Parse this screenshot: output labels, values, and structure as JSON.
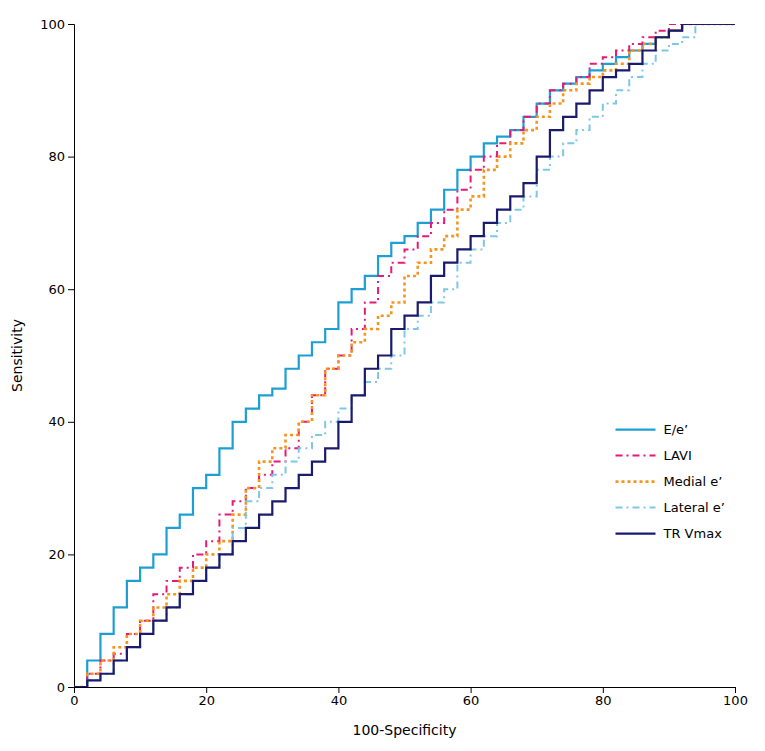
{
  "chart_data": {
    "type": "line",
    "xlabel": "100-Specificity",
    "ylabel": "Sensitivity",
    "xlim": [
      0,
      100
    ],
    "ylim": [
      0,
      100
    ],
    "xticks": [
      0,
      20,
      40,
      60,
      80,
      100
    ],
    "yticks": [
      0,
      20,
      40,
      60,
      80,
      100
    ],
    "legend": "lower right",
    "x": [
      0,
      2,
      2,
      4,
      4,
      6,
      6,
      8,
      8,
      10,
      10,
      12,
      12,
      14,
      14,
      16,
      16,
      18,
      18,
      20,
      20,
      22,
      22,
      24,
      24,
      26,
      26,
      28,
      28,
      30,
      30,
      32,
      32,
      34,
      34,
      36,
      36,
      38,
      38,
      40,
      40,
      42,
      42,
      44,
      44,
      46,
      46,
      48,
      48,
      50,
      50,
      52,
      52,
      54,
      54,
      56,
      56,
      58,
      58,
      60,
      60,
      62,
      62,
      64,
      64,
      66,
      66,
      68,
      68,
      70,
      70,
      72,
      72,
      74,
      74,
      76,
      76,
      78,
      78,
      80,
      80,
      82,
      82,
      84,
      84,
      86,
      86,
      88,
      88,
      90,
      90,
      92,
      92,
      94,
      94,
      96,
      96,
      98,
      98,
      100,
      100
    ],
    "series": [
      {
        "name": "E/e’",
        "color": "#1E9FD4",
        "line_style": "solid",
        "values": [
          0,
          0,
          4,
          4,
          8,
          8,
          12,
          12,
          16,
          16,
          18,
          18,
          20,
          20,
          24,
          24,
          26,
          26,
          30,
          30,
          32,
          32,
          36,
          36,
          40,
          40,
          42,
          42,
          44,
          44,
          45,
          45,
          48,
          48,
          50,
          50,
          52,
          52,
          54,
          54,
          58,
          58,
          60,
          60,
          62,
          62,
          65,
          65,
          67,
          67,
          68,
          68,
          70,
          70,
          72,
          72,
          75,
          75,
          78,
          78,
          80,
          80,
          82,
          82,
          83,
          83,
          84,
          84,
          86,
          86,
          88,
          88,
          90,
          90,
          91,
          91,
          92,
          92,
          93,
          93,
          94,
          94,
          95,
          95,
          96,
          96,
          97,
          97,
          98,
          98,
          99,
          99,
          100,
          100,
          100,
          100,
          100,
          100,
          100,
          100,
          100
        ]
      },
      {
        "name": "LAVI",
        "color": "#E6197A",
        "line_style": "dashdot",
        "values": [
          0,
          0,
          2,
          2,
          4,
          4,
          5,
          5,
          8,
          8,
          10,
          10,
          14,
          14,
          16,
          16,
          18,
          18,
          20,
          20,
          22,
          22,
          26,
          26,
          28,
          28,
          30,
          30,
          32,
          32,
          34,
          34,
          36,
          36,
          40,
          40,
          44,
          44,
          48,
          48,
          50,
          50,
          54,
          54,
          58,
          58,
          62,
          62,
          64,
          64,
          66,
          66,
          68,
          68,
          70,
          70,
          72,
          72,
          75,
          75,
          78,
          78,
          80,
          80,
          82,
          82,
          84,
          84,
          86,
          86,
          88,
          88,
          90,
          90,
          91,
          91,
          92,
          92,
          94,
          94,
          95,
          95,
          96,
          96,
          97,
          97,
          98,
          98,
          99,
          99,
          100,
          100,
          100,
          100,
          100,
          100,
          100,
          100,
          100,
          100,
          100
        ]
      },
      {
        "name": "Medial e’",
        "color": "#F7941D",
        "line_style": "dotted",
        "values": [
          0,
          0,
          2,
          2,
          4,
          4,
          6,
          6,
          8,
          8,
          10,
          10,
          12,
          12,
          14,
          14,
          16,
          16,
          18,
          18,
          20,
          20,
          22,
          22,
          26,
          26,
          30,
          30,
          34,
          34,
          36,
          36,
          38,
          38,
          40,
          40,
          44,
          44,
          48,
          48,
          50,
          50,
          52,
          52,
          54,
          54,
          56,
          56,
          58,
          58,
          62,
          62,
          64,
          64,
          66,
          66,
          68,
          68,
          72,
          72,
          74,
          74,
          78,
          78,
          80,
          80,
          82,
          82,
          84,
          84,
          86,
          86,
          88,
          88,
          90,
          90,
          91,
          91,
          92,
          92,
          93,
          93,
          94,
          94,
          96,
          96,
          97,
          97,
          98,
          98,
          99,
          99,
          100,
          100,
          100,
          100,
          100,
          100,
          100,
          100,
          100
        ]
      },
      {
        "name": "Lateral e’",
        "color": "#7EC8E3",
        "line_style": "dashdot",
        "values": [
          0,
          0,
          1,
          1,
          2,
          2,
          4,
          4,
          6,
          6,
          8,
          8,
          10,
          10,
          12,
          12,
          14,
          14,
          16,
          16,
          18,
          18,
          20,
          20,
          24,
          24,
          28,
          28,
          30,
          30,
          32,
          32,
          34,
          34,
          36,
          36,
          38,
          38,
          40,
          40,
          42,
          42,
          44,
          44,
          46,
          46,
          48,
          48,
          50,
          50,
          54,
          54,
          56,
          56,
          58,
          58,
          60,
          60,
          64,
          64,
          66,
          66,
          68,
          68,
          70,
          70,
          72,
          72,
          74,
          74,
          78,
          78,
          80,
          80,
          82,
          82,
          84,
          84,
          86,
          86,
          88,
          88,
          90,
          90,
          92,
          92,
          94,
          94,
          96,
          96,
          97,
          97,
          98,
          98,
          100,
          100,
          100,
          100,
          100,
          100,
          100
        ]
      },
      {
        "name": "TR Vmax",
        "color": "#1A1A6E",
        "line_style": "solid",
        "values": [
          0,
          0,
          1,
          1,
          2,
          2,
          4,
          4,
          6,
          6,
          8,
          8,
          10,
          10,
          12,
          12,
          14,
          14,
          16,
          16,
          18,
          18,
          20,
          20,
          22,
          22,
          24,
          24,
          26,
          26,
          28,
          28,
          30,
          30,
          32,
          32,
          34,
          34,
          36,
          36,
          40,
          40,
          44,
          44,
          48,
          48,
          50,
          50,
          54,
          54,
          56,
          56,
          58,
          58,
          62,
          62,
          64,
          64,
          66,
          66,
          68,
          68,
          70,
          70,
          72,
          72,
          74,
          74,
          76,
          76,
          80,
          80,
          84,
          84,
          86,
          86,
          88,
          88,
          90,
          90,
          92,
          92,
          93,
          93,
          94,
          94,
          96,
          96,
          98,
          98,
          99,
          99,
          100,
          100,
          100,
          100,
          100,
          100,
          100,
          100,
          100
        ]
      }
    ]
  }
}
